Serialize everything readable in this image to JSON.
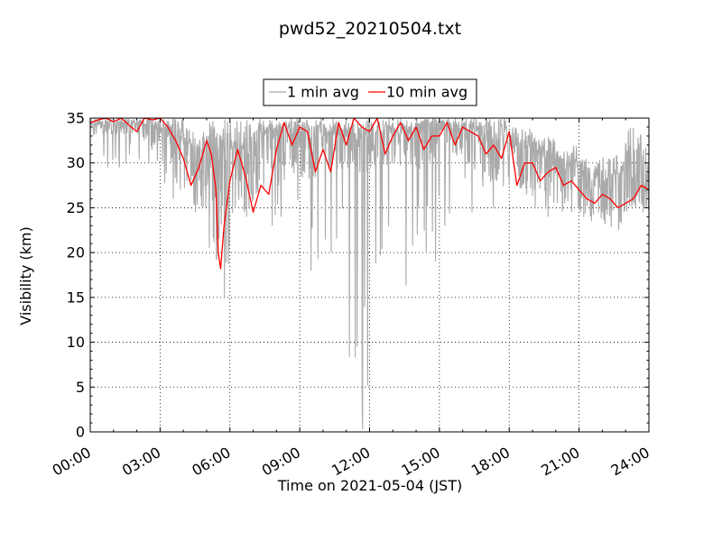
{
  "chart_data": {
    "type": "line",
    "title": "pwd52_20210504.txt",
    "xlabel": "Time on 2021-05-04 (JST)",
    "ylabel": "Visibility (km)",
    "x_unit": "time of day (hours)",
    "xlim": [
      0,
      24
    ],
    "ylim": [
      0,
      35
    ],
    "x_tick_labels": [
      "00:00",
      "03:00",
      "06:00",
      "09:00",
      "12:00",
      "15:00",
      "18:00",
      "21:00",
      "24:00"
    ],
    "y_tick_labels": [
      "0",
      "5",
      "10",
      "15",
      "20",
      "25",
      "30",
      "35"
    ],
    "grid": true,
    "grid_style": "dotted",
    "legend_position": "top-center",
    "series": [
      {
        "name": "1 min avg",
        "color": "#aaaaaa",
        "kind": "envelope",
        "note_window_hours": 1,
        "x": [
          0.5,
          1.5,
          2.5,
          3.5,
          4.5,
          5.5,
          6.5,
          7.5,
          8.5,
          9.5,
          10.5,
          11.5,
          12.5,
          13.5,
          14.5,
          15.5,
          16.5,
          17.5,
          18.5,
          19.5,
          20.5,
          21.5,
          22.5,
          23.5
        ],
        "min": [
          29.5,
          29.5,
          30,
          26,
          24.5,
          15,
          24,
          23,
          24,
          18,
          20,
          0.3,
          18.8,
          16.3,
          19,
          23,
          24.5,
          25,
          26.5,
          24,
          24.5,
          23.5,
          22.5,
          24.5
        ],
        "max": [
          35,
          35,
          35,
          35,
          34,
          35,
          35,
          35,
          35,
          35,
          35,
          35,
          35,
          35,
          35,
          35,
          35,
          35,
          34,
          33,
          32,
          30.5,
          31,
          34
        ],
        "typical": [
          34,
          34,
          33.5,
          31,
          29,
          26,
          29,
          31,
          32,
          31,
          32,
          31,
          32,
          32,
          32,
          33,
          32,
          31,
          30,
          29,
          28,
          26.5,
          26,
          27
        ]
      },
      {
        "name": "10 min avg",
        "color": "#ff0000",
        "x": [
          0.0,
          0.33,
          0.67,
          1.0,
          1.33,
          1.67,
          2.0,
          2.33,
          2.67,
          3.0,
          3.33,
          3.67,
          4.0,
          4.33,
          4.67,
          5.0,
          5.2,
          5.4,
          5.5,
          5.6,
          5.75,
          6.0,
          6.33,
          6.67,
          7.0,
          7.33,
          7.67,
          8.0,
          8.33,
          8.67,
          9.0,
          9.33,
          9.67,
          10.0,
          10.33,
          10.67,
          11.0,
          11.33,
          11.67,
          12.0,
          12.33,
          12.67,
          13.0,
          13.33,
          13.67,
          14.0,
          14.33,
          14.67,
          15.0,
          15.33,
          15.67,
          16.0,
          16.33,
          16.67,
          17.0,
          17.33,
          17.67,
          18.0,
          18.33,
          18.67,
          19.0,
          19.33,
          19.67,
          20.0,
          20.33,
          20.67,
          21.0,
          21.33,
          21.67,
          22.0,
          22.33,
          22.67,
          23.0,
          23.33,
          23.67,
          24.0
        ],
        "y": [
          34.5,
          34.8,
          35.0,
          34.6,
          35.0,
          34.2,
          33.5,
          35.0,
          34.8,
          35.0,
          34.0,
          32.5,
          30.5,
          27.5,
          29.5,
          32.5,
          31.0,
          27.0,
          20.0,
          18.2,
          23.0,
          28.0,
          31.5,
          28.5,
          24.5,
          27.5,
          26.5,
          31.5,
          34.5,
          32.0,
          34.0,
          33.5,
          29.0,
          31.5,
          29.0,
          34.5,
          32.0,
          35.0,
          34.0,
          33.5,
          35.0,
          31.0,
          33.0,
          34.5,
          32.5,
          34.0,
          31.5,
          33.0,
          33.0,
          34.5,
          32.0,
          34.0,
          33.5,
          33.0,
          31.0,
          32.0,
          30.5,
          33.5,
          27.5,
          30.0,
          30.0,
          28.0,
          29.0,
          29.5,
          27.5,
          28.0,
          27.0,
          26.0,
          25.5,
          26.5,
          26.0,
          25.0,
          25.5,
          26.0,
          27.5,
          27.0
        ]
      }
    ]
  }
}
